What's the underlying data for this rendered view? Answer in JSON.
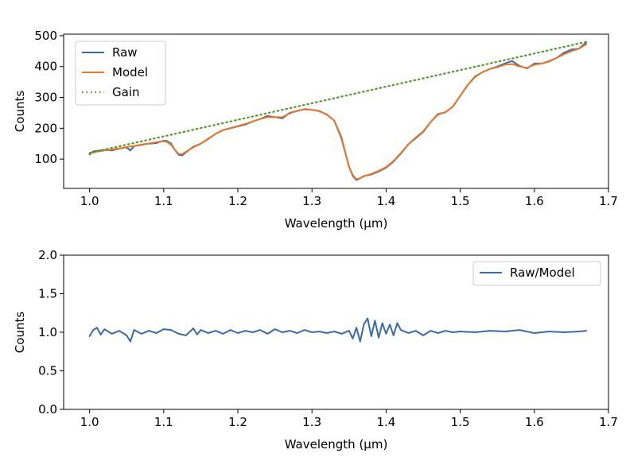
{
  "chart_data": [
    {
      "type": "line",
      "title": "",
      "xlabel": "Wavelength (μm)",
      "ylabel": "Counts",
      "xlim": [
        0.965,
        1.7
      ],
      "ylim": [
        5,
        505
      ],
      "xticks": [
        1.0,
        1.1,
        1.2,
        1.3,
        1.4,
        1.5,
        1.6,
        1.7
      ],
      "xtick_labels": [
        "1.0",
        "1.1",
        "1.2",
        "1.3",
        "1.4",
        "1.5",
        "1.6",
        "1.7"
      ],
      "yticks": [
        100,
        200,
        300,
        400,
        500
      ],
      "ytick_labels": [
        "100",
        "200",
        "300",
        "400",
        "500"
      ],
      "legend_position": "top-left",
      "legend": [
        "Raw",
        "Model",
        "Gain"
      ],
      "series": [
        {
          "name": "Raw",
          "color": "#3b6aa8",
          "style": "solid",
          "x": [
            1.0,
            1.005,
            1.01,
            1.02,
            1.03,
            1.04,
            1.05,
            1.055,
            1.06,
            1.07,
            1.08,
            1.09,
            1.1,
            1.105,
            1.11,
            1.115,
            1.12,
            1.125,
            1.13,
            1.14,
            1.15,
            1.16,
            1.17,
            1.18,
            1.19,
            1.2,
            1.21,
            1.22,
            1.23,
            1.24,
            1.25,
            1.26,
            1.27,
            1.28,
            1.29,
            1.3,
            1.31,
            1.32,
            1.33,
            1.34,
            1.345,
            1.35,
            1.355,
            1.36,
            1.365,
            1.37,
            1.38,
            1.39,
            1.4,
            1.41,
            1.42,
            1.43,
            1.44,
            1.45,
            1.46,
            1.47,
            1.48,
            1.49,
            1.5,
            1.51,
            1.52,
            1.53,
            1.54,
            1.55,
            1.56,
            1.57,
            1.58,
            1.59,
            1.6,
            1.61,
            1.62,
            1.63,
            1.64,
            1.65,
            1.66,
            1.67
          ],
          "y": [
            115,
            125,
            127,
            130,
            128,
            134,
            138,
            128,
            142,
            146,
            150,
            152,
            160,
            158,
            150,
            130,
            114,
            112,
            122,
            140,
            150,
            165,
            182,
            194,
            200,
            206,
            212,
            222,
            230,
            240,
            236,
            232,
            250,
            256,
            262,
            260,
            256,
            244,
            225,
            165,
            120,
            75,
            45,
            32,
            38,
            45,
            50,
            60,
            72,
            92,
            118,
            148,
            168,
            188,
            220,
            246,
            252,
            270,
            305,
            340,
            368,
            382,
            392,
            400,
            410,
            418,
            402,
            394,
            410,
            410,
            418,
            428,
            445,
            455,
            458,
            478
          ]
        },
        {
          "name": "Model",
          "color": "#e8782a",
          "style": "solid",
          "x": [
            1.0,
            1.01,
            1.02,
            1.03,
            1.04,
            1.05,
            1.06,
            1.07,
            1.08,
            1.09,
            1.1,
            1.105,
            1.11,
            1.115,
            1.12,
            1.125,
            1.13,
            1.14,
            1.15,
            1.16,
            1.17,
            1.18,
            1.19,
            1.2,
            1.21,
            1.22,
            1.23,
            1.24,
            1.25,
            1.26,
            1.27,
            1.28,
            1.29,
            1.3,
            1.31,
            1.32,
            1.33,
            1.34,
            1.345,
            1.35,
            1.355,
            1.36,
            1.365,
            1.37,
            1.38,
            1.39,
            1.4,
            1.41,
            1.42,
            1.43,
            1.44,
            1.45,
            1.46,
            1.47,
            1.48,
            1.49,
            1.5,
            1.51,
            1.52,
            1.53,
            1.54,
            1.55,
            1.56,
            1.57,
            1.58,
            1.59,
            1.6,
            1.61,
            1.62,
            1.63,
            1.64,
            1.65,
            1.66,
            1.67
          ],
          "y": [
            118,
            124,
            128,
            131,
            135,
            139,
            143,
            147,
            151,
            155,
            158,
            155,
            146,
            130,
            117,
            116,
            124,
            138,
            150,
            166,
            182,
            194,
            201,
            207,
            214,
            222,
            230,
            236,
            236,
            236,
            248,
            257,
            261,
            260,
            255,
            245,
            225,
            170,
            122,
            75,
            48,
            35,
            38,
            44,
            52,
            62,
            74,
            94,
            120,
            148,
            170,
            190,
            220,
            244,
            252,
            270,
            305,
            340,
            366,
            382,
            392,
            398,
            406,
            408,
            400,
            396,
            406,
            410,
            416,
            428,
            440,
            450,
            458,
            472
          ]
        },
        {
          "name": "Gain",
          "color": "#4f9a2e",
          "style": "dotted",
          "x": [
            1.0,
            1.67
          ],
          "y": [
            120,
            480
          ]
        }
      ]
    },
    {
      "type": "line",
      "title": "",
      "xlabel": "Wavelength (μm)",
      "ylabel": "Counts",
      "xlim": [
        0.965,
        1.7
      ],
      "ylim": [
        0.0,
        2.0
      ],
      "xticks": [
        1.0,
        1.1,
        1.2,
        1.3,
        1.4,
        1.5,
        1.6,
        1.7
      ],
      "xtick_labels": [
        "1.0",
        "1.1",
        "1.2",
        "1.3",
        "1.4",
        "1.5",
        "1.6",
        "1.7"
      ],
      "yticks": [
        0.0,
        0.5,
        1.0,
        1.5,
        2.0
      ],
      "ytick_labels": [
        "0.0",
        "0.5",
        "1.0",
        "1.5",
        "2.0"
      ],
      "legend_position": "top-right",
      "legend": [
        "Raw/Model"
      ],
      "series": [
        {
          "name": "Raw/Model",
          "color": "#3b6aa8",
          "style": "solid",
          "x": [
            1.0,
            1.005,
            1.01,
            1.015,
            1.02,
            1.03,
            1.04,
            1.05,
            1.055,
            1.06,
            1.07,
            1.08,
            1.09,
            1.1,
            1.11,
            1.12,
            1.13,
            1.14,
            1.145,
            1.15,
            1.16,
            1.17,
            1.18,
            1.19,
            1.2,
            1.21,
            1.22,
            1.23,
            1.24,
            1.25,
            1.26,
            1.27,
            1.28,
            1.29,
            1.3,
            1.31,
            1.32,
            1.33,
            1.34,
            1.35,
            1.355,
            1.36,
            1.365,
            1.37,
            1.375,
            1.38,
            1.385,
            1.39,
            1.395,
            1.4,
            1.405,
            1.41,
            1.415,
            1.42,
            1.43,
            1.44,
            1.45,
            1.46,
            1.47,
            1.48,
            1.49,
            1.5,
            1.52,
            1.54,
            1.56,
            1.58,
            1.6,
            1.62,
            1.64,
            1.66,
            1.67
          ],
          "y": [
            0.95,
            1.03,
            1.06,
            0.97,
            1.04,
            0.98,
            1.02,
            0.96,
            0.88,
            1.03,
            0.98,
            1.02,
            0.99,
            1.04,
            1.03,
            0.98,
            0.96,
            1.05,
            0.97,
            1.03,
            0.99,
            1.02,
            0.98,
            1.03,
            0.99,
            1.02,
            1.0,
            1.03,
            0.98,
            1.04,
            1.0,
            1.02,
            0.99,
            1.03,
            1.0,
            1.01,
            0.99,
            1.01,
            0.98,
            1.02,
            0.92,
            1.06,
            0.88,
            1.1,
            1.18,
            0.95,
            1.15,
            0.93,
            1.12,
            0.98,
            1.1,
            0.96,
            1.12,
            1.03,
            0.99,
            1.02,
            0.96,
            1.02,
            0.99,
            1.02,
            1.0,
            1.01,
            1.0,
            1.02,
            1.01,
            1.03,
            0.99,
            1.01,
            1.0,
            1.01,
            1.02
          ]
        }
      ]
    }
  ]
}
